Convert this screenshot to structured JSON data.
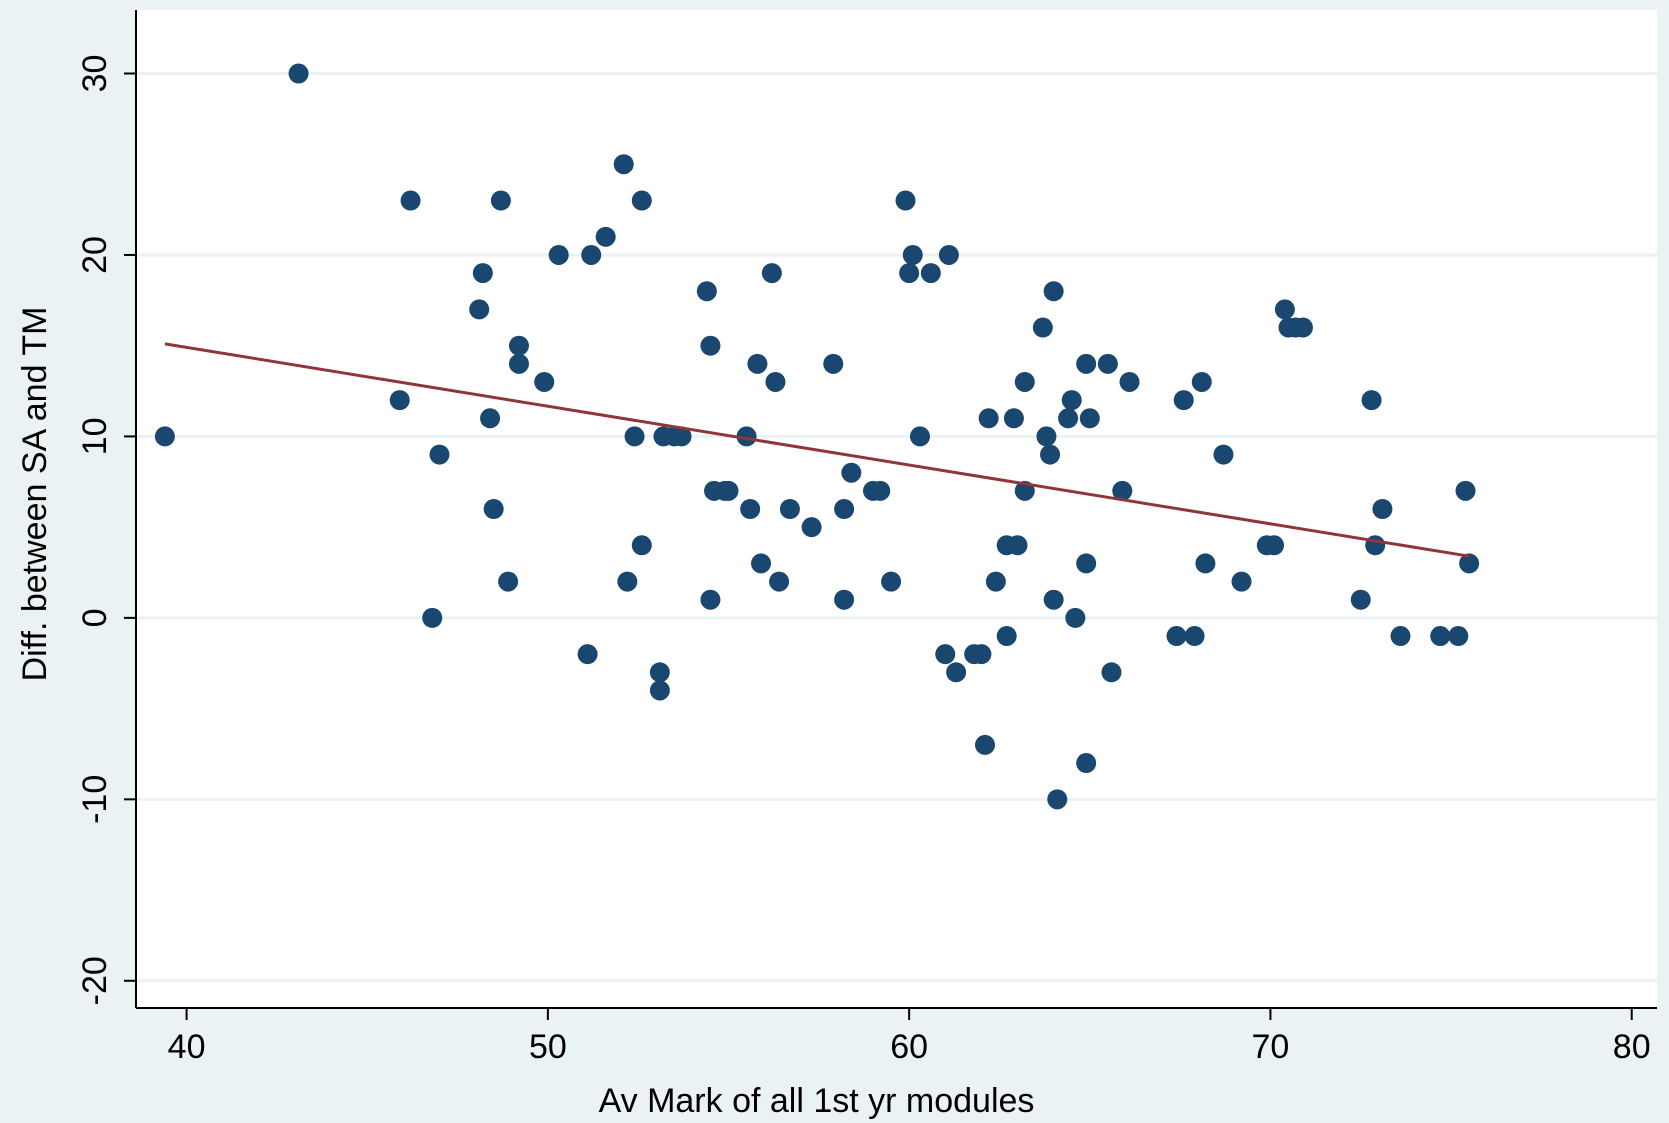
{
  "chart_data": {
    "type": "scatter",
    "title": "",
    "xlabel": "Av Mark of all 1st yr modules",
    "ylabel": "Diff. between SA and TM",
    "xlim": [
      38.6,
      80.7
    ],
    "ylim": [
      -21.5,
      33.5
    ],
    "xticks": [
      40,
      50,
      60,
      70,
      80
    ],
    "yticks": [
      -20,
      -10,
      0,
      10,
      20,
      30
    ],
    "grid": "horizontal",
    "colors": {
      "background": "#eaf2f3",
      "plot_area": "#ffffff",
      "point": "#1a476f",
      "fit_line": "#90353b",
      "grid": "#eaf2f3"
    },
    "points": [
      [
        39.4,
        10
      ],
      [
        43.1,
        30
      ],
      [
        45.9,
        12
      ],
      [
        46.2,
        23
      ],
      [
        46.8,
        0
      ],
      [
        47.0,
        9
      ],
      [
        48.1,
        17
      ],
      [
        48.2,
        19
      ],
      [
        48.4,
        11
      ],
      [
        48.5,
        6
      ],
      [
        48.7,
        23
      ],
      [
        48.9,
        2
      ],
      [
        49.2,
        14
      ],
      [
        49.2,
        15
      ],
      [
        49.9,
        13
      ],
      [
        50.3,
        20
      ],
      [
        51.1,
        -2
      ],
      [
        51.2,
        20
      ],
      [
        51.6,
        21
      ],
      [
        52.1,
        25
      ],
      [
        52.2,
        2
      ],
      [
        52.4,
        10
      ],
      [
        52.6,
        4
      ],
      [
        52.6,
        23
      ],
      [
        53.1,
        -3
      ],
      [
        53.1,
        -4
      ],
      [
        53.2,
        10
      ],
      [
        53.5,
        10
      ],
      [
        53.7,
        10
      ],
      [
        54.4,
        18
      ],
      [
        54.5,
        15
      ],
      [
        54.5,
        1
      ],
      [
        54.6,
        7
      ],
      [
        54.9,
        7
      ],
      [
        55.0,
        7
      ],
      [
        55.5,
        10
      ],
      [
        55.6,
        6
      ],
      [
        55.8,
        14
      ],
      [
        55.9,
        3
      ],
      [
        56.2,
        19
      ],
      [
        56.3,
        13
      ],
      [
        56.4,
        2
      ],
      [
        56.7,
        6
      ],
      [
        57.3,
        5
      ],
      [
        57.9,
        14
      ],
      [
        58.2,
        6
      ],
      [
        58.2,
        1
      ],
      [
        58.4,
        8
      ],
      [
        59.0,
        7
      ],
      [
        59.2,
        7
      ],
      [
        59.5,
        2
      ],
      [
        59.9,
        23
      ],
      [
        60.0,
        19
      ],
      [
        60.1,
        20
      ],
      [
        60.3,
        10
      ],
      [
        60.6,
        19
      ],
      [
        61.0,
        -2
      ],
      [
        61.1,
        20
      ],
      [
        61.3,
        -3
      ],
      [
        61.8,
        -2
      ],
      [
        62.0,
        -2
      ],
      [
        62.1,
        -7
      ],
      [
        62.2,
        11
      ],
      [
        62.4,
        2
      ],
      [
        62.7,
        -1
      ],
      [
        62.7,
        4
      ],
      [
        62.9,
        11
      ],
      [
        63.0,
        4
      ],
      [
        63.2,
        7
      ],
      [
        63.2,
        13
      ],
      [
        63.7,
        16
      ],
      [
        63.8,
        10
      ],
      [
        63.9,
        9
      ],
      [
        64.0,
        18
      ],
      [
        64.0,
        1
      ],
      [
        64.1,
        -10
      ],
      [
        64.4,
        11
      ],
      [
        64.5,
        12
      ],
      [
        64.6,
        0
      ],
      [
        64.9,
        3
      ],
      [
        64.9,
        14
      ],
      [
        64.9,
        -8
      ],
      [
        65.0,
        11
      ],
      [
        65.5,
        14
      ],
      [
        65.6,
        -3
      ],
      [
        65.9,
        7
      ],
      [
        66.1,
        13
      ],
      [
        67.4,
        -1
      ],
      [
        67.6,
        12
      ],
      [
        67.9,
        -1
      ],
      [
        68.1,
        13
      ],
      [
        68.2,
        3
      ],
      [
        68.7,
        9
      ],
      [
        69.2,
        2
      ],
      [
        69.9,
        4
      ],
      [
        70.1,
        4
      ],
      [
        70.4,
        17
      ],
      [
        70.5,
        16
      ],
      [
        70.7,
        16
      ],
      [
        70.9,
        16
      ],
      [
        72.5,
        1
      ],
      [
        72.8,
        12
      ],
      [
        72.9,
        4
      ],
      [
        73.1,
        6
      ],
      [
        73.6,
        -1
      ],
      [
        74.7,
        -1
      ],
      [
        75.2,
        -1
      ],
      [
        75.4,
        7
      ],
      [
        75.5,
        3
      ]
    ],
    "fit_line": {
      "x": [
        39.4,
        75.5
      ],
      "y": [
        15.1,
        3.4
      ]
    }
  }
}
